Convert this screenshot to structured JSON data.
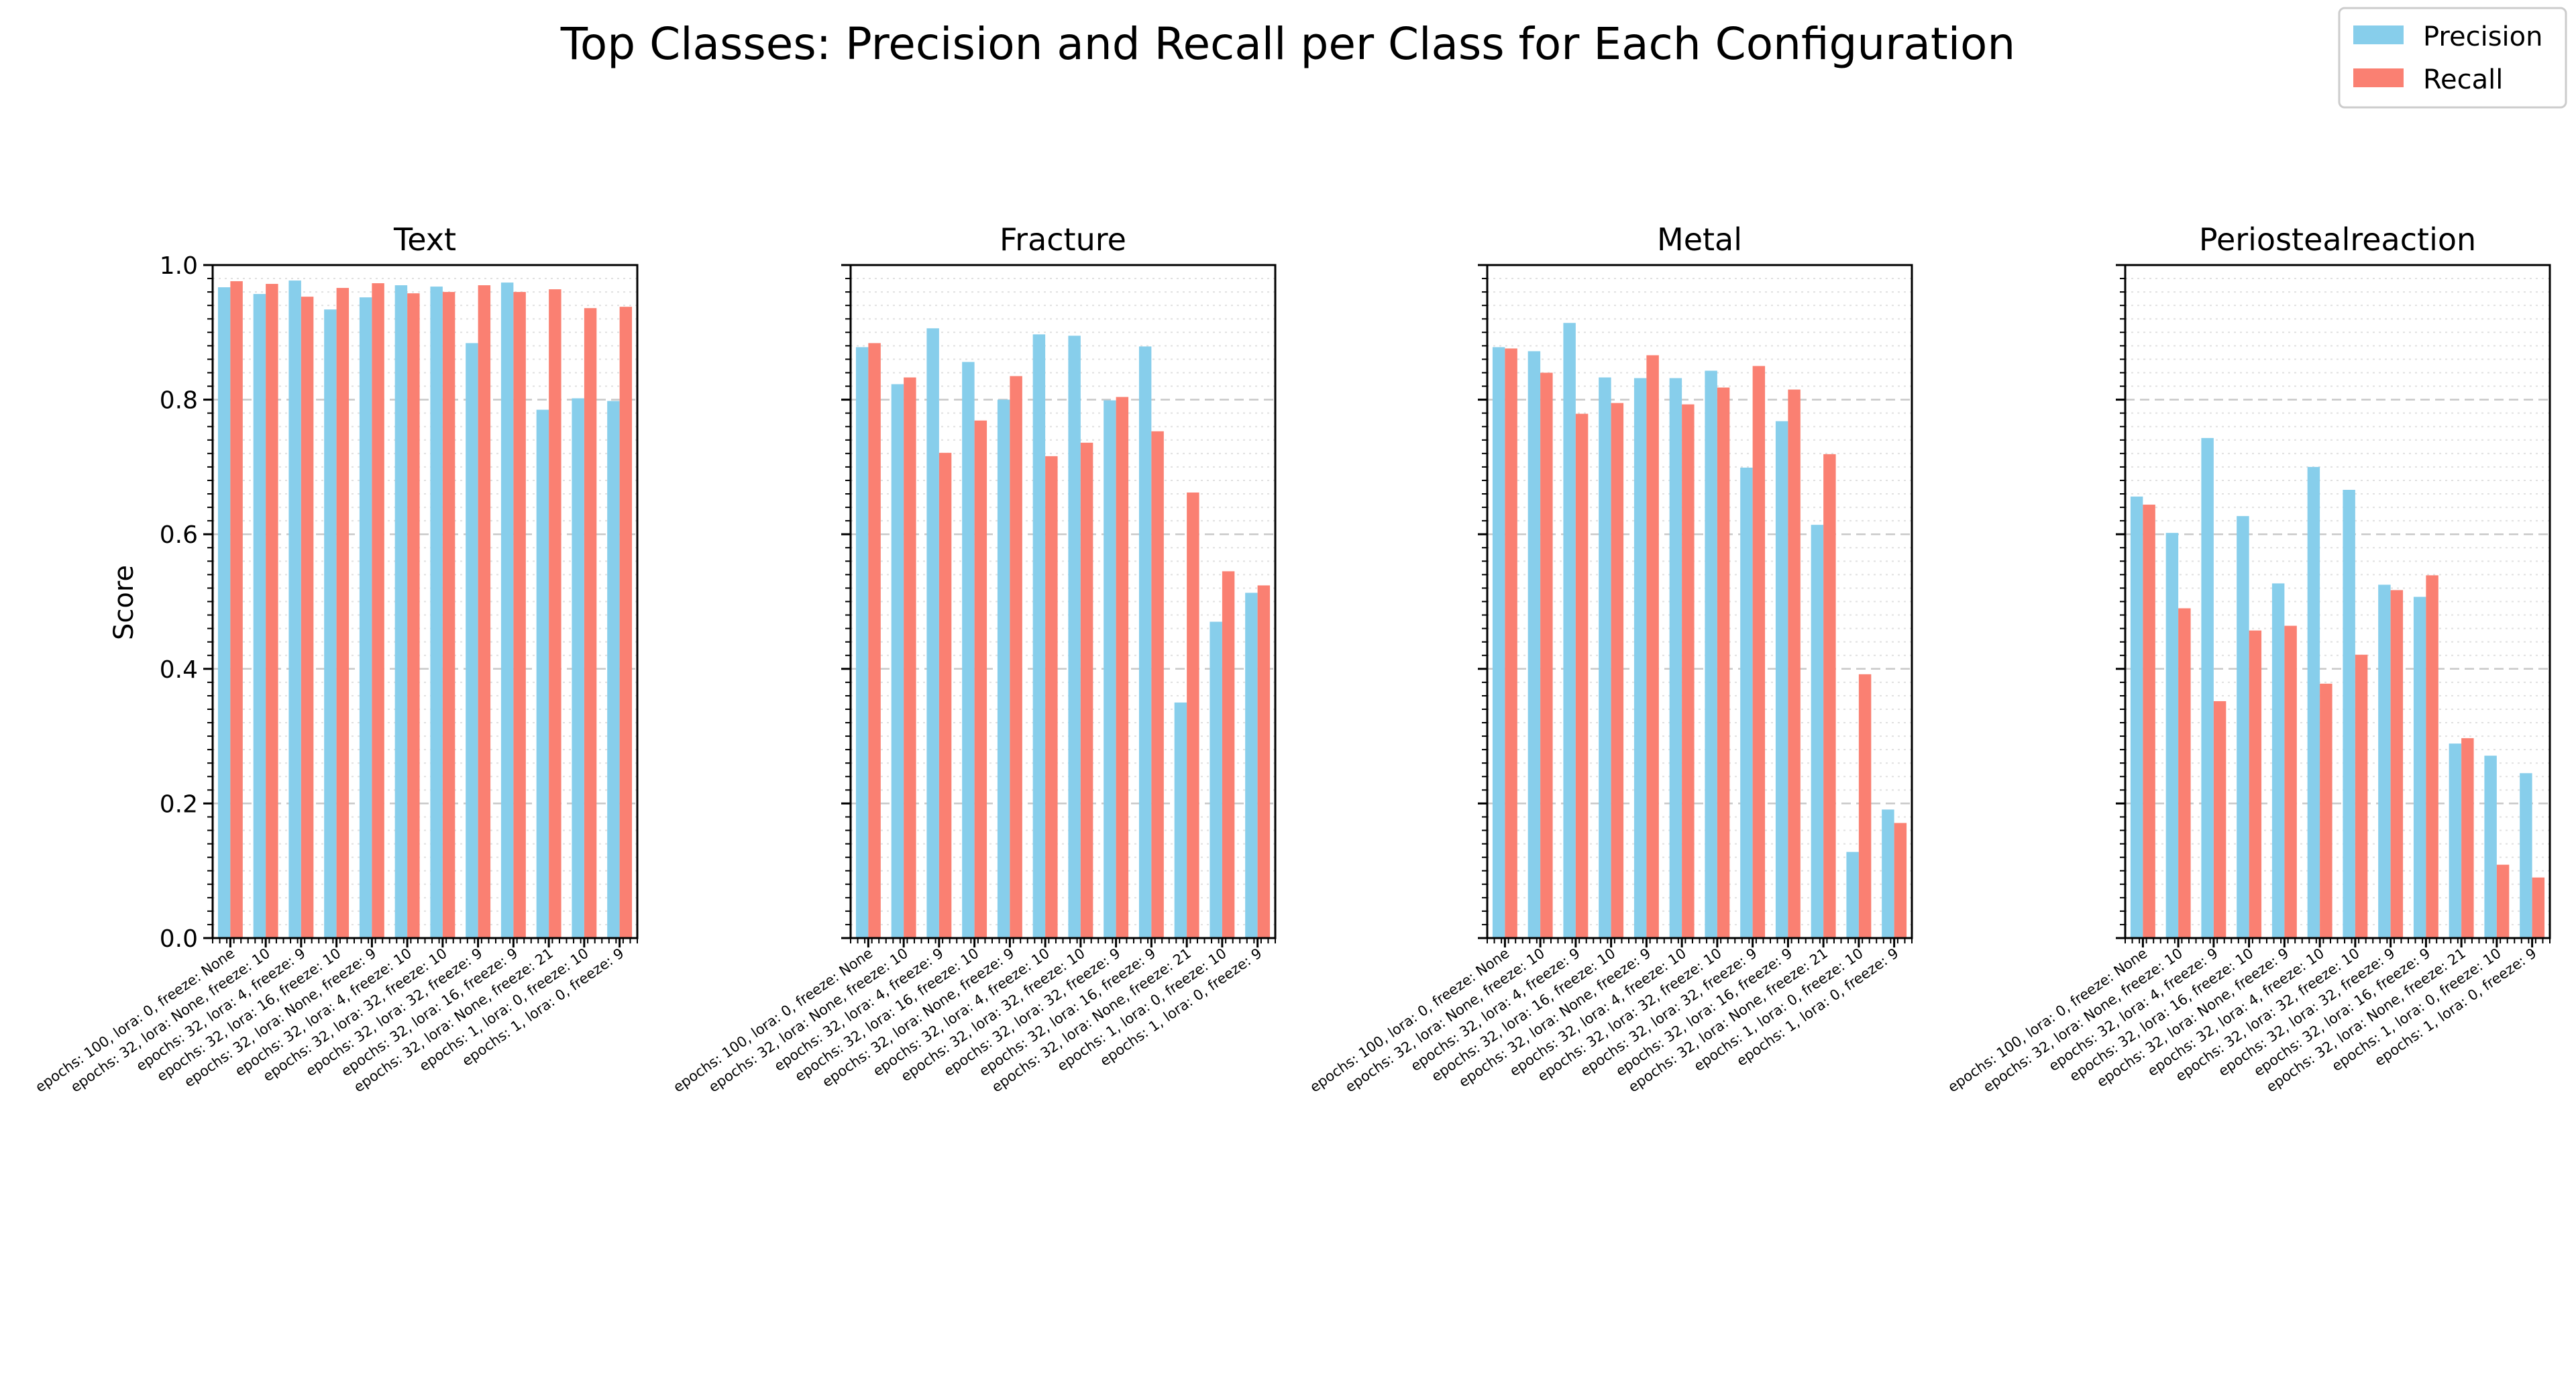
{
  "title": "Top Classes: Precision and Recall per Class for Each Configuration",
  "legend": {
    "placement": "top-right",
    "items": [
      {
        "label": "Precision",
        "color": "#87CEEB"
      },
      {
        "label": "Recall",
        "color": "#FA8072"
      }
    ]
  },
  "chart_data": {
    "type": "bar",
    "ylabel": "Score",
    "ylim": [
      0,
      1.0
    ],
    "yticks": [
      "0.0",
      "0.2",
      "0.4",
      "0.6",
      "0.8",
      "1.0"
    ],
    "grid": "horizontal dashed (major), dotted (minor)",
    "categories": [
      "epochs: 100, lora: 0, freeze: None",
      "epochs: 32, lora: None, freeze: 10",
      "epochs: 32, lora: 4, freeze: 9",
      "epochs: 32, lora: 16, freeze: 10",
      "epochs: 32, lora: None, freeze: 9",
      "epochs: 32, lora: 4, freeze: 10",
      "epochs: 32, lora: 32, freeze: 10",
      "epochs: 32, lora: 32, freeze: 9",
      "epochs: 32, lora: 16, freeze: 9",
      "epochs: 32, lora: None, freeze: 21",
      "epochs: 1, lora: 0, freeze: 10",
      "epochs: 1, lora: 0, freeze: 9"
    ],
    "panels": [
      {
        "title": "Text",
        "series": [
          {
            "name": "Precision",
            "values": [
              0.967,
              0.957,
              0.977,
              0.934,
              0.952,
              0.97,
              0.968,
              0.884,
              0.974,
              0.785,
              0.802,
              0.798
            ]
          },
          {
            "name": "Recall",
            "values": [
              0.976,
              0.972,
              0.953,
              0.966,
              0.973,
              0.958,
              0.96,
              0.97,
              0.96,
              0.964,
              0.936,
              0.938
            ]
          }
        ]
      },
      {
        "title": "Fracture",
        "series": [
          {
            "name": "Precision",
            "values": [
              0.878,
              0.823,
              0.906,
              0.856,
              0.8,
              0.897,
              0.895,
              0.799,
              0.879,
              0.35,
              0.47,
              0.513
            ]
          },
          {
            "name": "Recall",
            "values": [
              0.884,
              0.833,
              0.721,
              0.769,
              0.835,
              0.716,
              0.736,
              0.804,
              0.753,
              0.662,
              0.545,
              0.524
            ]
          }
        ]
      },
      {
        "title": "Metal",
        "series": [
          {
            "name": "Precision",
            "values": [
              0.878,
              0.872,
              0.914,
              0.833,
              0.832,
              0.832,
              0.843,
              0.699,
              0.768,
              0.614,
              0.128,
              0.191
            ]
          },
          {
            "name": "Recall",
            "values": [
              0.876,
              0.84,
              0.779,
              0.795,
              0.866,
              0.793,
              0.818,
              0.85,
              0.815,
              0.719,
              0.392,
              0.171
            ]
          }
        ]
      },
      {
        "title": "Periostealreaction",
        "series": [
          {
            "name": "Precision",
            "values": [
              0.656,
              0.602,
              0.743,
              0.627,
              0.527,
              0.7,
              0.666,
              0.525,
              0.507,
              0.289,
              0.271,
              0.245
            ]
          },
          {
            "name": "Recall",
            "values": [
              0.644,
              0.49,
              0.352,
              0.457,
              0.464,
              0.378,
              0.421,
              0.517,
              0.539,
              0.297,
              0.109,
              0.09
            ]
          }
        ]
      }
    ]
  }
}
